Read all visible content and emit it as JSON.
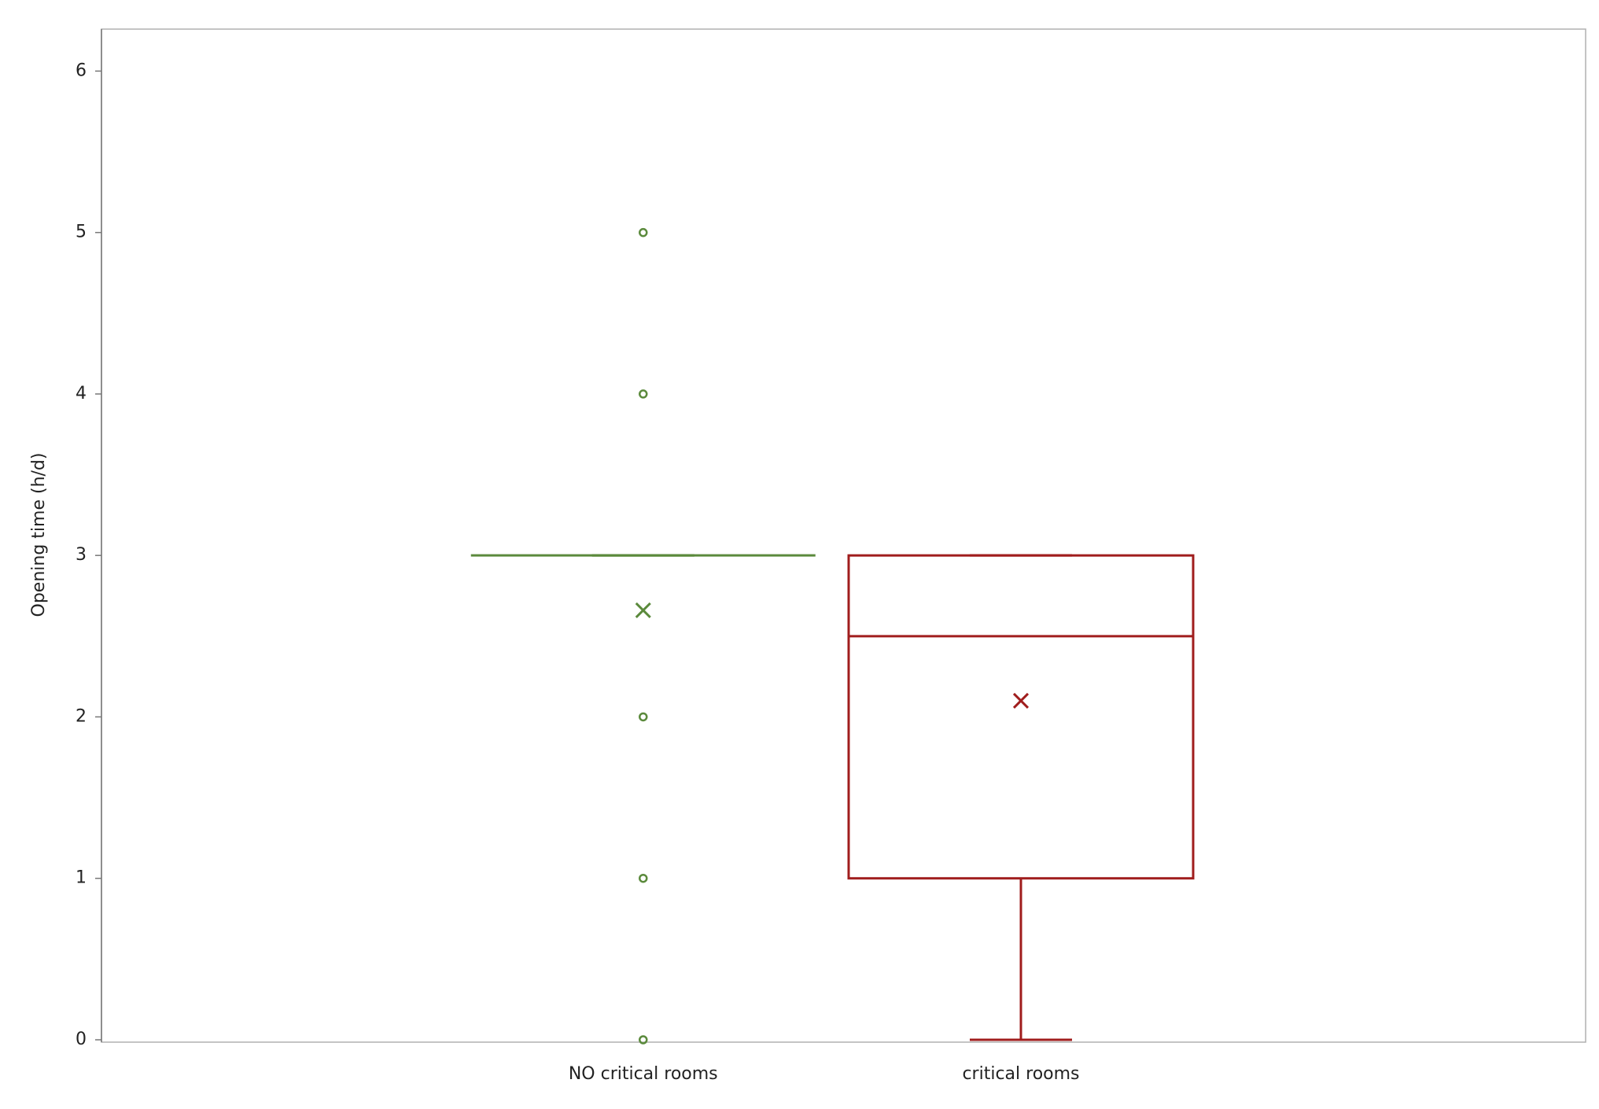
{
  "chart_data": {
    "type": "box",
    "y_label": "Opening time (h/d)",
    "categories": [
      "NO critical rooms",
      "critical rooms"
    ],
    "boxes": [
      {
        "color": "#5b8a3c",
        "min": 3,
        "q1": 3,
        "median": 3,
        "q3": 3,
        "max": 3,
        "mean": 2.66,
        "outliers": [
          5,
          4,
          2,
          1,
          0
        ]
      },
      {
        "color": "#a01d1d",
        "min": 0,
        "q1": 1,
        "median": 2.5,
        "q3": 3,
        "max": 3,
        "mean": 2.1,
        "outliers": []
      }
    ],
    "ylim": [
      0,
      6.26
    ],
    "yticks": [
      0,
      1,
      2,
      3,
      4,
      5,
      6
    ]
  }
}
